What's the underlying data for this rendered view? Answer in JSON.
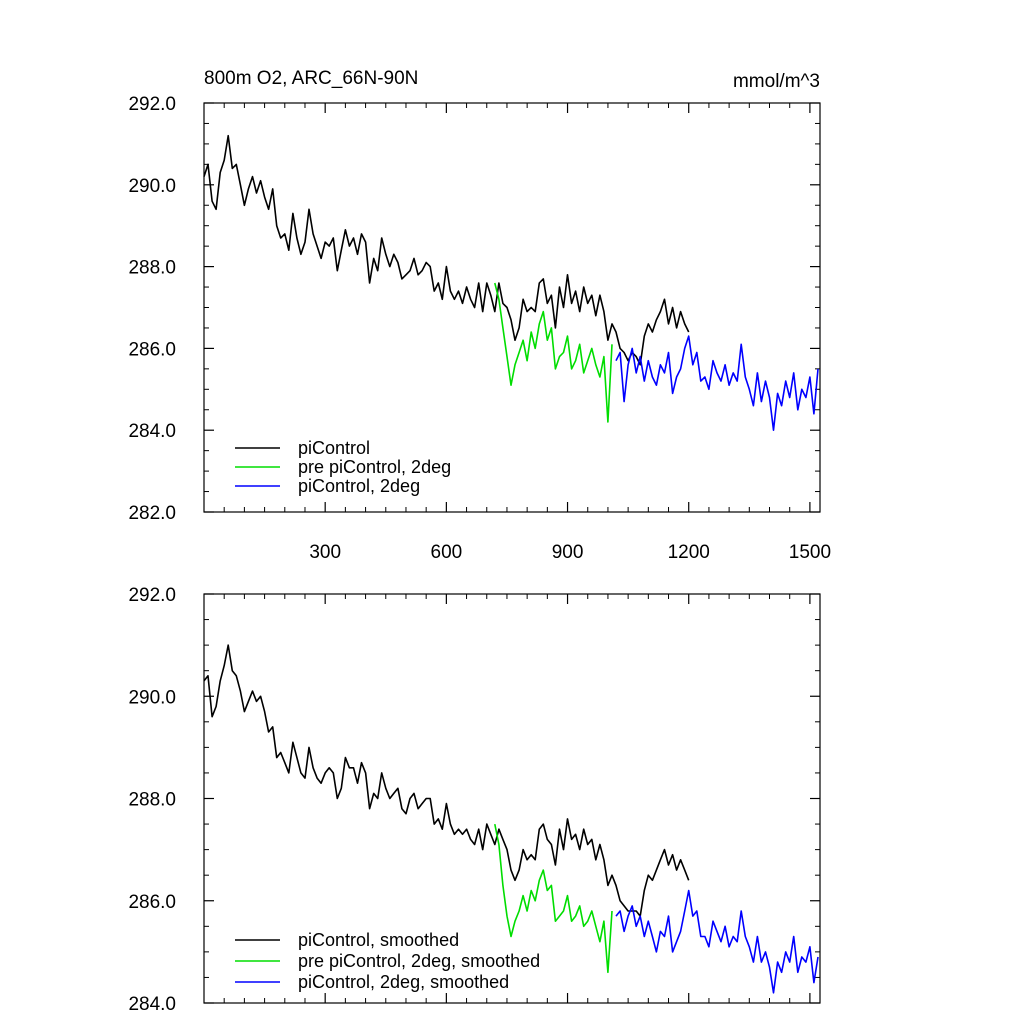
{
  "title_left": "800m O2, ARC_66N-90N",
  "title_right": "mmol/m^3",
  "chart_data": [
    {
      "type": "line",
      "name": "top-panel",
      "xlim": [
        0,
        1525
      ],
      "ylim": [
        282,
        292
      ],
      "xticks": [
        300,
        600,
        900,
        1200,
        1500
      ],
      "xtick_labels": [
        "300",
        "600",
        "900",
        "1200",
        "1500"
      ],
      "yticks": [
        282,
        284,
        286,
        288,
        290,
        292
      ],
      "ytick_labels": [
        "282.0",
        "284.0",
        "286.0",
        "288.0",
        "290.0",
        "292.0"
      ],
      "legend_position": "bottom-left",
      "series": [
        {
          "name": "piControl",
          "color": "#000000",
          "x": [
            0,
            10,
            20,
            30,
            40,
            50,
            60,
            70,
            80,
            90,
            100,
            110,
            120,
            130,
            140,
            150,
            160,
            170,
            180,
            190,
            200,
            210,
            220,
            230,
            240,
            250,
            260,
            270,
            280,
            290,
            300,
            310,
            320,
            330,
            340,
            350,
            360,
            370,
            380,
            390,
            400,
            410,
            420,
            430,
            440,
            450,
            460,
            470,
            480,
            490,
            500,
            510,
            520,
            530,
            540,
            550,
            560,
            570,
            580,
            590,
            600,
            610,
            620,
            630,
            640,
            650,
            660,
            670,
            680,
            690,
            700,
            710,
            720,
            730,
            740,
            750,
            760,
            770,
            780,
            790,
            800,
            810,
            820,
            830,
            840,
            850,
            860,
            870,
            880,
            890,
            900,
            910,
            920,
            930,
            940,
            950,
            960,
            970,
            980,
            990,
            1000,
            1010,
            1020,
            1030,
            1040,
            1050,
            1060,
            1070,
            1080,
            1090,
            1100,
            1110,
            1120,
            1130,
            1140,
            1150,
            1160,
            1170,
            1180,
            1190,
            1200
          ],
          "y": [
            290.2,
            290.5,
            289.6,
            289.4,
            290.3,
            290.6,
            291.2,
            290.4,
            290.5,
            290.0,
            289.5,
            289.9,
            290.2,
            289.8,
            290.1,
            289.7,
            289.4,
            289.9,
            289.0,
            288.7,
            288.8,
            288.4,
            289.3,
            288.7,
            288.3,
            288.6,
            289.4,
            288.8,
            288.5,
            288.2,
            288.6,
            288.5,
            288.7,
            287.9,
            288.4,
            288.9,
            288.5,
            288.7,
            288.3,
            288.8,
            288.6,
            287.6,
            288.2,
            287.9,
            288.7,
            288.3,
            288.0,
            288.3,
            288.1,
            287.7,
            287.8,
            287.9,
            288.2,
            287.8,
            287.9,
            288.1,
            288.0,
            287.4,
            287.6,
            287.2,
            288.0,
            287.4,
            287.2,
            287.4,
            287.1,
            287.5,
            287.2,
            287.0,
            287.6,
            286.9,
            287.6,
            287.3,
            286.9,
            287.6,
            287.1,
            287.0,
            286.7,
            286.2,
            286.5,
            287.2,
            286.9,
            287.0,
            286.9,
            287.6,
            287.7,
            287.1,
            287.3,
            286.5,
            287.5,
            287.0,
            287.8,
            287.1,
            287.4,
            286.9,
            287.5,
            287.1,
            287.3,
            286.8,
            287.3,
            286.9,
            286.2,
            286.6,
            286.4,
            286.0,
            285.9,
            285.7,
            285.9,
            285.8,
            285.6,
            286.3,
            286.6,
            286.4,
            286.7,
            286.9,
            287.2,
            286.6,
            287.0,
            286.5,
            286.9,
            286.6,
            286.4
          ]
        },
        {
          "name": "pre piControl, 2deg",
          "color": "#00dd00",
          "x": [
            720,
            730,
            740,
            750,
            760,
            770,
            780,
            790,
            800,
            810,
            820,
            830,
            840,
            850,
            860,
            870,
            880,
            890,
            900,
            910,
            920,
            930,
            940,
            950,
            960,
            970,
            980,
            990,
            1000,
            1010
          ],
          "y": [
            287.6,
            287.2,
            286.5,
            285.8,
            285.1,
            285.6,
            285.9,
            286.2,
            285.7,
            286.4,
            286.0,
            286.6,
            286.9,
            286.2,
            286.5,
            285.5,
            285.8,
            285.9,
            286.3,
            285.5,
            285.7,
            286.1,
            285.4,
            285.7,
            286.0,
            285.6,
            285.3,
            285.8,
            284.2,
            286.1
          ]
        },
        {
          "name": "piControl, 2deg",
          "color": "#0000ff",
          "x": [
            1020,
            1030,
            1040,
            1050,
            1060,
            1070,
            1080,
            1090,
            1100,
            1110,
            1120,
            1130,
            1140,
            1150,
            1160,
            1170,
            1180,
            1190,
            1200,
            1210,
            1220,
            1230,
            1240,
            1250,
            1260,
            1270,
            1280,
            1290,
            1300,
            1310,
            1320,
            1330,
            1340,
            1350,
            1360,
            1370,
            1380,
            1390,
            1400,
            1410,
            1420,
            1430,
            1440,
            1450,
            1460,
            1470,
            1480,
            1490,
            1500,
            1510,
            1520
          ],
          "y": [
            285.7,
            285.9,
            284.7,
            285.6,
            286.0,
            285.4,
            285.8,
            285.2,
            285.7,
            285.3,
            285.1,
            285.6,
            285.4,
            285.9,
            284.9,
            285.3,
            285.5,
            286.0,
            286.3,
            285.6,
            285.9,
            285.2,
            285.3,
            285.0,
            285.7,
            285.4,
            285.2,
            285.6,
            285.1,
            285.4,
            285.2,
            286.1,
            285.3,
            285.0,
            284.6,
            285.4,
            284.7,
            285.2,
            284.8,
            284.0,
            284.9,
            284.6,
            285.2,
            284.8,
            285.4,
            284.5,
            285.0,
            284.8,
            285.3,
            284.4,
            285.5
          ]
        }
      ]
    },
    {
      "type": "line",
      "name": "bottom-panel",
      "xlim": [
        0,
        1525
      ],
      "ylim": [
        284,
        292
      ],
      "xticks": [
        300,
        600,
        900,
        1200,
        1500
      ],
      "yticks": [
        284,
        286,
        288,
        290,
        292
      ],
      "ytick_labels": [
        "284.0",
        "286.0",
        "288.0",
        "290.0",
        "292.0"
      ],
      "legend_position": "bottom-left",
      "series": [
        {
          "name": "piControl, smoothed",
          "color": "#000000",
          "x": [
            0,
            10,
            20,
            30,
            40,
            50,
            60,
            70,
            80,
            90,
            100,
            110,
            120,
            130,
            140,
            150,
            160,
            170,
            180,
            190,
            200,
            210,
            220,
            230,
            240,
            250,
            260,
            270,
            280,
            290,
            300,
            310,
            320,
            330,
            340,
            350,
            360,
            370,
            380,
            390,
            400,
            410,
            420,
            430,
            440,
            450,
            460,
            470,
            480,
            490,
            500,
            510,
            520,
            530,
            540,
            550,
            560,
            570,
            580,
            590,
            600,
            610,
            620,
            630,
            640,
            650,
            660,
            670,
            680,
            690,
            700,
            710,
            720,
            730,
            740,
            750,
            760,
            770,
            780,
            790,
            800,
            810,
            820,
            830,
            840,
            850,
            860,
            870,
            880,
            890,
            900,
            910,
            920,
            930,
            940,
            950,
            960,
            970,
            980,
            990,
            1000,
            1010,
            1020,
            1030,
            1040,
            1050,
            1060,
            1070,
            1080,
            1090,
            1100,
            1110,
            1120,
            1130,
            1140,
            1150,
            1160,
            1170,
            1180,
            1190,
            1200
          ],
          "y": [
            290.3,
            290.4,
            289.6,
            289.8,
            290.3,
            290.6,
            291.0,
            290.5,
            290.4,
            290.1,
            289.7,
            289.9,
            290.1,
            289.9,
            290.0,
            289.7,
            289.3,
            289.4,
            288.8,
            288.9,
            288.7,
            288.5,
            289.1,
            288.8,
            288.5,
            288.4,
            289.0,
            288.6,
            288.4,
            288.3,
            288.5,
            288.6,
            288.5,
            288.0,
            288.2,
            288.8,
            288.6,
            288.6,
            288.3,
            288.7,
            288.5,
            287.8,
            288.1,
            288.0,
            288.5,
            288.2,
            288.0,
            288.1,
            288.2,
            287.8,
            287.7,
            288.0,
            288.1,
            287.8,
            287.9,
            288.0,
            288.0,
            287.5,
            287.6,
            287.4,
            287.9,
            287.5,
            287.3,
            287.4,
            287.3,
            287.4,
            287.2,
            287.1,
            287.4,
            287.0,
            287.5,
            287.3,
            287.1,
            287.4,
            287.2,
            287.0,
            286.6,
            286.4,
            286.6,
            287.0,
            286.8,
            286.9,
            286.8,
            287.4,
            287.5,
            287.2,
            287.1,
            286.7,
            287.4,
            287.0,
            287.6,
            287.2,
            287.3,
            287.0,
            287.4,
            287.1,
            287.2,
            286.8,
            287.1,
            286.8,
            286.3,
            286.5,
            286.3,
            286.0,
            285.9,
            285.8,
            285.8,
            285.8,
            285.7,
            286.2,
            286.5,
            286.4,
            286.6,
            286.8,
            287.0,
            286.7,
            286.9,
            286.6,
            286.8,
            286.6,
            286.4
          ]
        },
        {
          "name": "pre piControl, 2deg, smoothed",
          "color": "#00dd00",
          "x": [
            720,
            730,
            740,
            750,
            760,
            770,
            780,
            790,
            800,
            810,
            820,
            830,
            840,
            850,
            860,
            870,
            880,
            890,
            900,
            910,
            920,
            930,
            940,
            950,
            960,
            970,
            980,
            990,
            1000,
            1010
          ],
          "y": [
            287.5,
            287.1,
            286.3,
            285.7,
            285.3,
            285.6,
            285.8,
            286.1,
            285.8,
            286.2,
            286.0,
            286.4,
            286.6,
            286.2,
            286.3,
            285.6,
            285.7,
            285.8,
            286.1,
            285.6,
            285.7,
            285.9,
            285.5,
            285.6,
            285.8,
            285.5,
            285.2,
            285.6,
            284.6,
            285.8
          ]
        },
        {
          "name": "piControl, 2deg, smoothed",
          "color": "#0000ff",
          "x": [
            1020,
            1030,
            1040,
            1050,
            1060,
            1070,
            1080,
            1090,
            1100,
            1110,
            1120,
            1130,
            1140,
            1150,
            1160,
            1170,
            1180,
            1190,
            1200,
            1210,
            1220,
            1230,
            1240,
            1250,
            1260,
            1270,
            1280,
            1290,
            1300,
            1310,
            1320,
            1330,
            1340,
            1350,
            1360,
            1370,
            1380,
            1390,
            1400,
            1410,
            1420,
            1430,
            1440,
            1450,
            1460,
            1470,
            1480,
            1490,
            1500,
            1510,
            1520
          ],
          "y": [
            285.7,
            285.8,
            285.4,
            285.7,
            285.9,
            285.5,
            285.7,
            285.3,
            285.6,
            285.3,
            285.0,
            285.4,
            285.3,
            285.7,
            285.0,
            285.2,
            285.4,
            285.8,
            286.2,
            285.7,
            285.8,
            285.3,
            285.3,
            285.1,
            285.6,
            285.4,
            285.2,
            285.5,
            285.1,
            285.3,
            285.2,
            285.8,
            285.3,
            285.1,
            284.8,
            285.3,
            284.8,
            285.0,
            284.7,
            284.2,
            284.8,
            284.6,
            285.0,
            284.8,
            285.3,
            284.6,
            284.9,
            284.8,
            285.1,
            284.4,
            284.9
          ]
        }
      ]
    }
  ]
}
